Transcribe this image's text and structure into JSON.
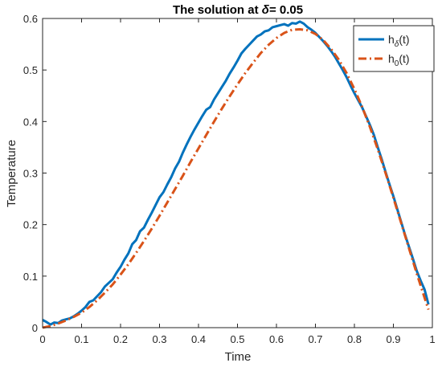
{
  "chart_data": {
    "type": "line",
    "title": "The solution at ",
    "title_symbol": "δ",
    "title_suffix": "= 0.05",
    "xlabel": "Time",
    "ylabel": "Temperature",
    "xlim": [
      0,
      1
    ],
    "ylim": [
      0,
      0.6
    ],
    "xticks": [
      "0",
      "0.1",
      "0.2",
      "0.3",
      "0.4",
      "0.5",
      "0.6",
      "0.7",
      "0.8",
      "0.9",
      "1"
    ],
    "yticks": [
      "0",
      "0.1",
      "0.2",
      "0.3",
      "0.4",
      "0.5",
      "0.6"
    ],
    "grid": false,
    "legend_position": "top-right",
    "legend": [
      {
        "base": "h",
        "sub": "δ",
        "suffix": "(t)"
      },
      {
        "base": "h",
        "sub": "0",
        "suffix": "(t)"
      }
    ],
    "series": [
      {
        "name": "hδ(t)",
        "color": "#0072BD",
        "style": "solid",
        "x": [
          0,
          0.01,
          0.02,
          0.03,
          0.04,
          0.05,
          0.06,
          0.07,
          0.08,
          0.09,
          0.1,
          0.11,
          0.12,
          0.13,
          0.14,
          0.15,
          0.16,
          0.17,
          0.18,
          0.19,
          0.2,
          0.21,
          0.22,
          0.23,
          0.24,
          0.25,
          0.26,
          0.27,
          0.28,
          0.29,
          0.3,
          0.31,
          0.32,
          0.33,
          0.34,
          0.35,
          0.36,
          0.37,
          0.38,
          0.39,
          0.4,
          0.41,
          0.42,
          0.43,
          0.44,
          0.45,
          0.46,
          0.47,
          0.48,
          0.49,
          0.5,
          0.51,
          0.52,
          0.53,
          0.54,
          0.55,
          0.56,
          0.57,
          0.58,
          0.59,
          0.6,
          0.61,
          0.62,
          0.63,
          0.64,
          0.65,
          0.66,
          0.67,
          0.68,
          0.69,
          0.7,
          0.71,
          0.72,
          0.73,
          0.74,
          0.75,
          0.76,
          0.77,
          0.78,
          0.79,
          0.8,
          0.81,
          0.82,
          0.83,
          0.84,
          0.85,
          0.86,
          0.87,
          0.88,
          0.89,
          0.9,
          0.91,
          0.92,
          0.93,
          0.94,
          0.95,
          0.96,
          0.97,
          0.98,
          0.99
        ],
        "values": [
          0.015,
          0.011,
          0.006,
          0.01,
          0.009,
          0.014,
          0.016,
          0.018,
          0.022,
          0.027,
          0.033,
          0.04,
          0.05,
          0.053,
          0.061,
          0.069,
          0.08,
          0.087,
          0.094,
          0.107,
          0.118,
          0.132,
          0.144,
          0.162,
          0.17,
          0.187,
          0.194,
          0.209,
          0.223,
          0.238,
          0.253,
          0.263,
          0.278,
          0.292,
          0.309,
          0.322,
          0.34,
          0.356,
          0.371,
          0.385,
          0.398,
          0.411,
          0.423,
          0.428,
          0.443,
          0.455,
          0.467,
          0.479,
          0.493,
          0.505,
          0.518,
          0.532,
          0.541,
          0.549,
          0.557,
          0.565,
          0.569,
          0.575,
          0.577,
          0.583,
          0.585,
          0.587,
          0.589,
          0.586,
          0.591,
          0.59,
          0.594,
          0.59,
          0.583,
          0.578,
          0.572,
          0.564,
          0.556,
          0.547,
          0.537,
          0.526,
          0.513,
          0.5,
          0.486,
          0.47,
          0.455,
          0.441,
          0.427,
          0.41,
          0.393,
          0.374,
          0.35,
          0.327,
          0.302,
          0.278,
          0.255,
          0.23,
          0.205,
          0.18,
          0.157,
          0.134,
          0.11,
          0.091,
          0.074,
          0.045
        ]
      },
      {
        "name": "h0(t)",
        "color": "#D95319",
        "style": "dashdot",
        "x": [
          0,
          0.02,
          0.04,
          0.06,
          0.08,
          0.1,
          0.12,
          0.14,
          0.16,
          0.18,
          0.2,
          0.22,
          0.24,
          0.26,
          0.28,
          0.3,
          0.32,
          0.34,
          0.36,
          0.38,
          0.4,
          0.42,
          0.44,
          0.46,
          0.48,
          0.5,
          0.52,
          0.54,
          0.56,
          0.58,
          0.6,
          0.62,
          0.64,
          0.66,
          0.68,
          0.7,
          0.72,
          0.74,
          0.76,
          0.78,
          0.8,
          0.82,
          0.84,
          0.86,
          0.88,
          0.9,
          0.92,
          0.94,
          0.96,
          0.98,
          0.99
        ],
        "values": [
          0.0,
          0.003,
          0.008,
          0.014,
          0.021,
          0.029,
          0.04,
          0.053,
          0.068,
          0.084,
          0.103,
          0.123,
          0.145,
          0.168,
          0.192,
          0.217,
          0.243,
          0.269,
          0.295,
          0.322,
          0.348,
          0.374,
          0.4,
          0.425,
          0.449,
          0.472,
          0.494,
          0.514,
          0.533,
          0.549,
          0.562,
          0.572,
          0.578,
          0.579,
          0.577,
          0.57,
          0.558,
          0.541,
          0.52,
          0.494,
          0.463,
          0.428,
          0.389,
          0.346,
          0.3,
          0.252,
          0.203,
          0.154,
          0.105,
          0.058,
          0.035
        ]
      }
    ]
  }
}
